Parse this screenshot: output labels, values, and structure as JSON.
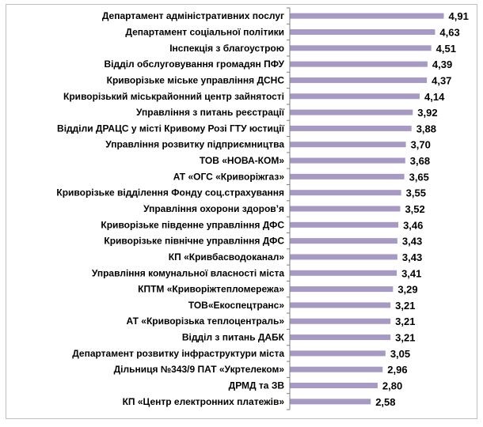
{
  "chart_data": {
    "type": "bar",
    "orientation": "horizontal",
    "bar_color": "#a699c3",
    "axis_color": "#7f7f7f",
    "xlim": [
      0,
      5.2
    ],
    "categories": [
      "Департамент адміністративних послуг",
      "Департамент соціальної політики",
      "Інспекція з благоустрою",
      "Відділ обслуговування громадян ПФУ",
      "Криворізьке міське управління ДСНС",
      "Криворізький міськрайонний центр зайнятості",
      "Управління з питань реєстрації",
      "Відділи ДРАЦС у місті Кривому Розі ГТУ юстиції",
      "Управління розвитку підприємництва",
      "ТОВ «НОВА-КОМ»",
      "АТ «ОГС «Криворіжгаз»",
      "Криворізьке відділення Фонду соц.страхування",
      "Управління охорони здоров’я",
      "Криворізьке південне управління ДФС",
      "Криворізьке північне управління ДФС",
      "КП «Кривбасводоканал»",
      "Управління комунальної власності міста",
      "КПТМ «Криворіжтепломережа»",
      "ТОВ«Екоспецтранс»",
      "АТ «Криворізька теплоцентраль»",
      "Відділ з питань ДАБК",
      "Департамент розвитку інфраструктури міста",
      "Дільниця №343/9 ПАТ «Укртелеком»",
      "ДРМД та ЗВ",
      "КП «Центр електронних платежів»"
    ],
    "values": [
      4.91,
      4.63,
      4.51,
      4.39,
      4.37,
      4.14,
      3.92,
      3.88,
      3.7,
      3.68,
      3.65,
      3.55,
      3.52,
      3.46,
      3.43,
      3.43,
      3.41,
      3.29,
      3.21,
      3.21,
      3.21,
      3.05,
      2.96,
      2.8,
      2.58
    ],
    "value_labels": [
      "4,91",
      "4,63",
      "4,51",
      "4,39",
      "4,37",
      "4,14",
      "3,92",
      "3,88",
      "3,70",
      "3,68",
      "3,65",
      "3,55",
      "3,52",
      "3,46",
      "3,43",
      "3,43",
      "3,41",
      "3,29",
      "3,21",
      "3,21",
      "3,21",
      "3,05",
      "2,96",
      "2,80",
      "2,58"
    ]
  }
}
